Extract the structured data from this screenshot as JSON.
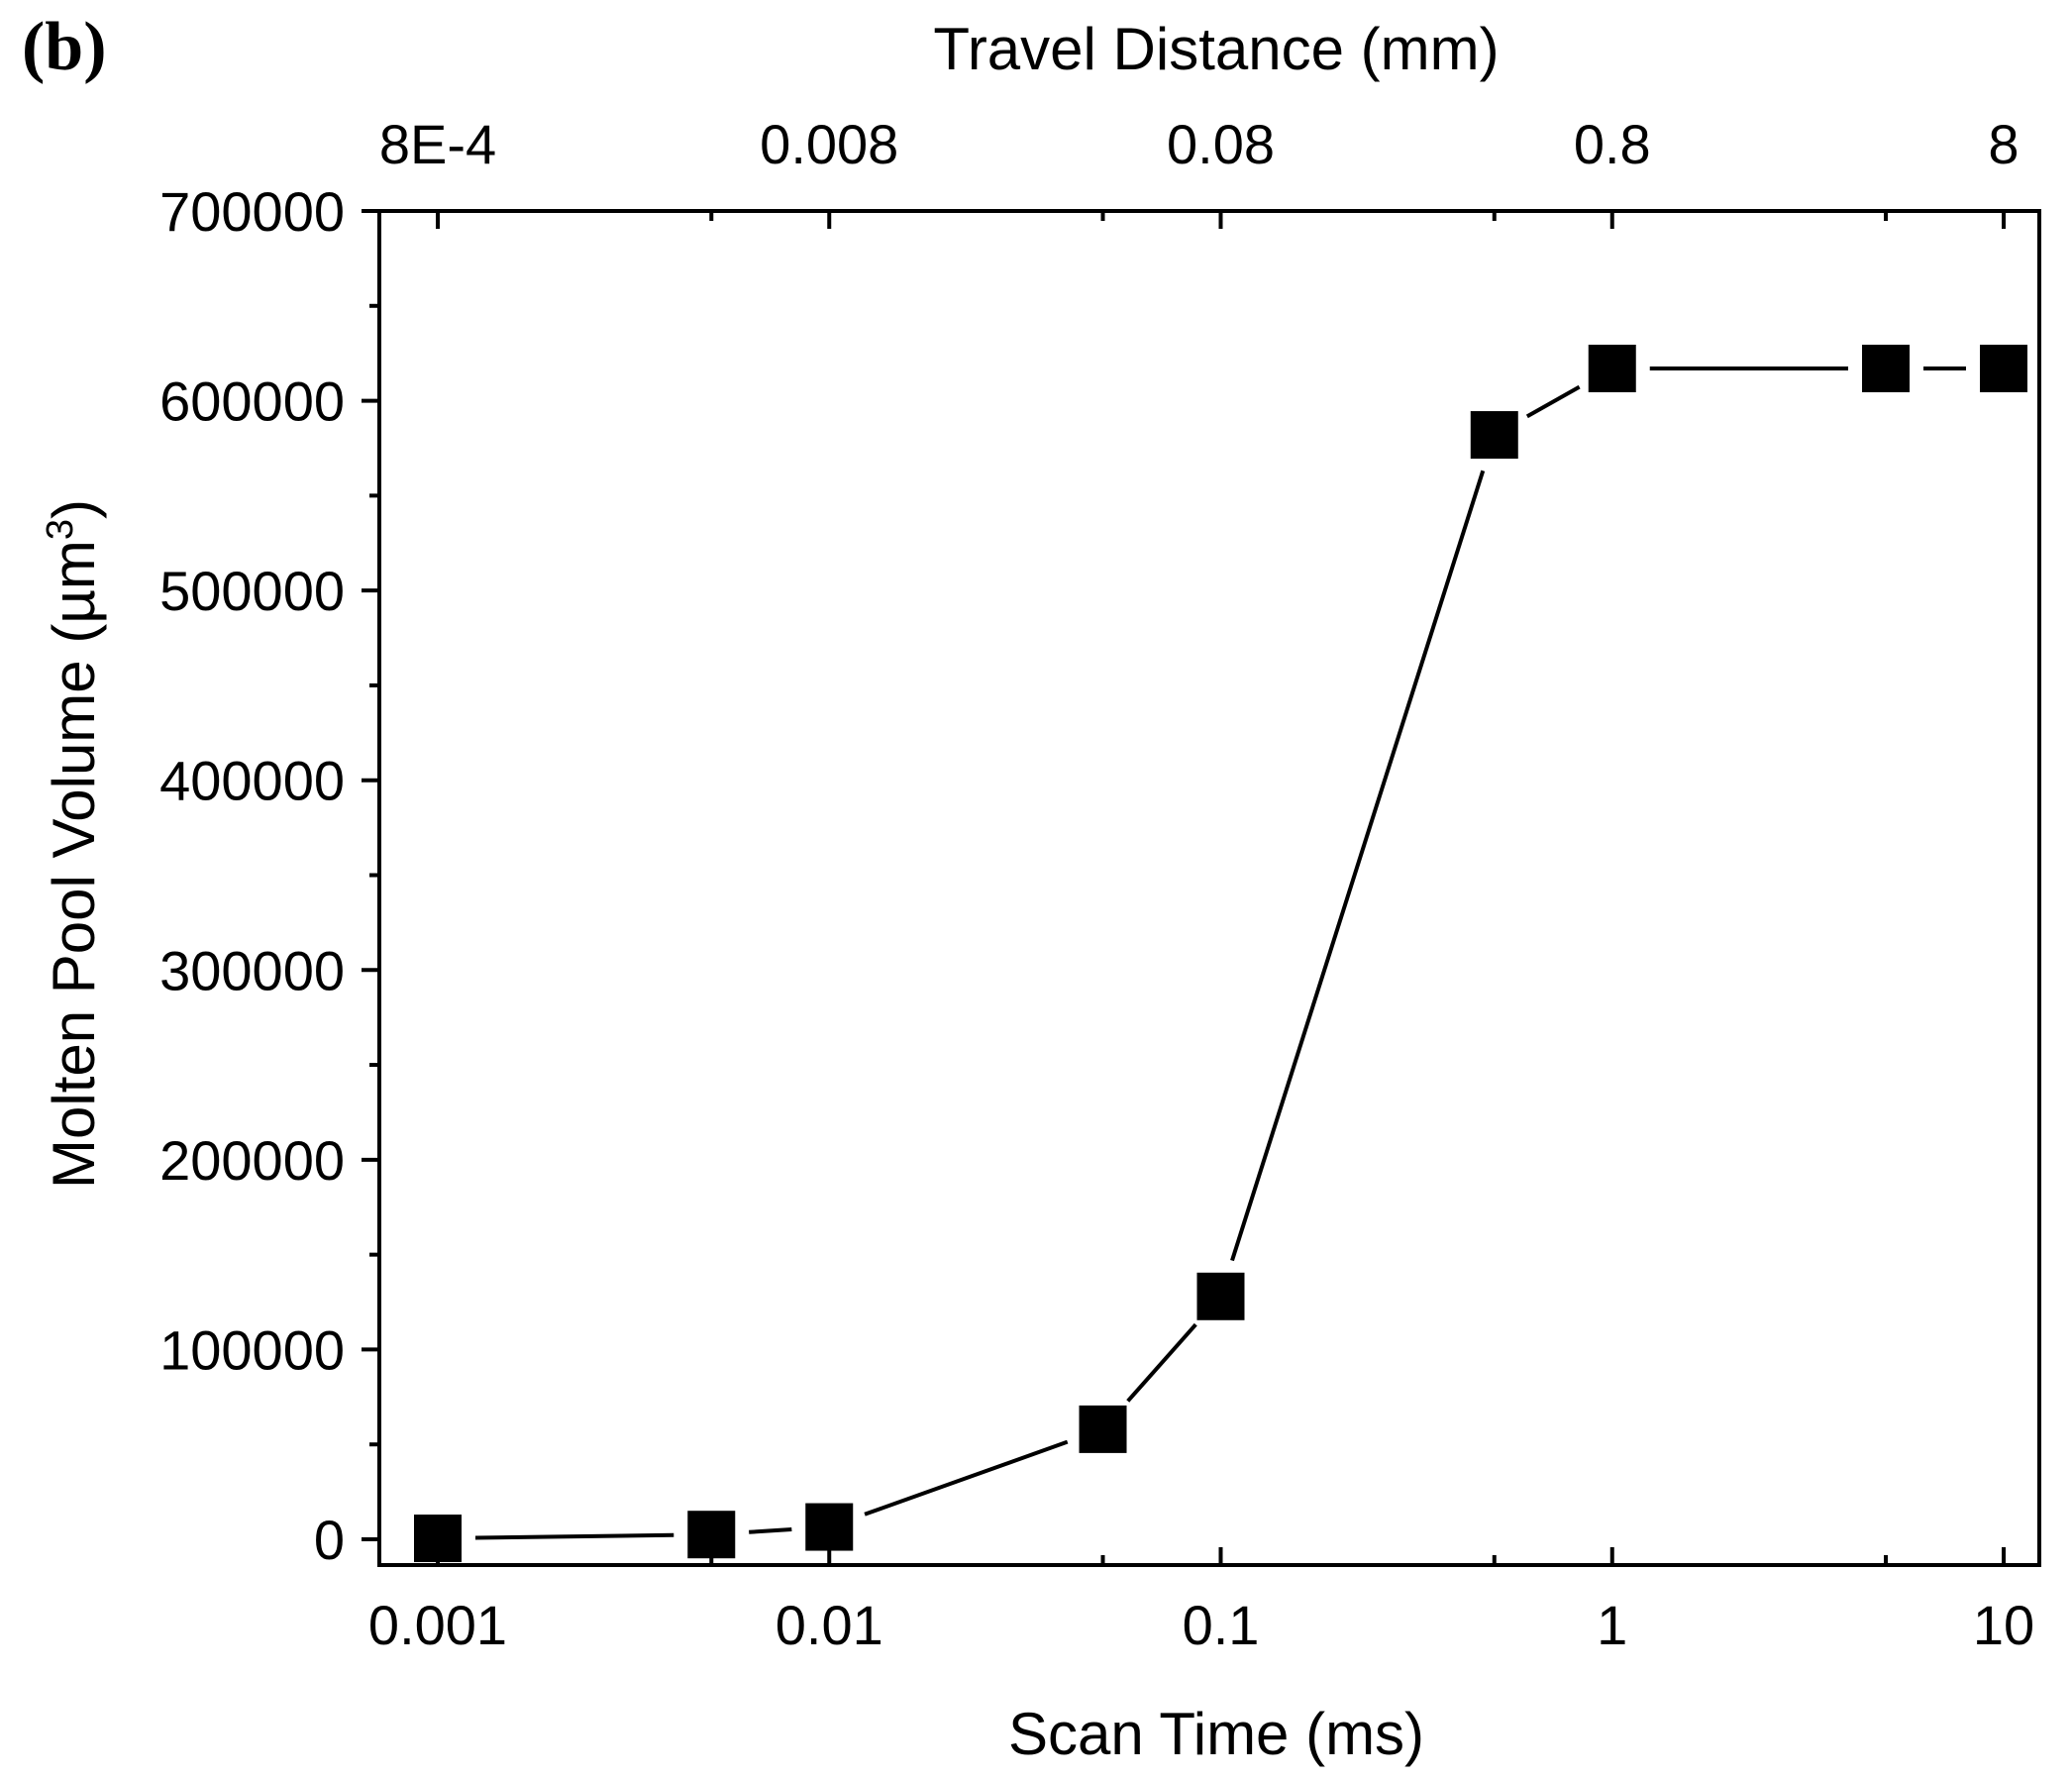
{
  "panel_label": "(b)",
  "chart_data": {
    "type": "line",
    "xlabel": "Scan Time (ms)",
    "x2label": "Travel Distance (mm)",
    "ylabel": "Molten Pool Volume (µm",
    "ylabel_sup": "3",
    "ylabel_close": ")",
    "x_scale": "log",
    "xlim": [
      0.001,
      10
    ],
    "ylim": [
      0,
      700000
    ],
    "grid": false,
    "x_ticks": [
      0.001,
      0.01,
      0.1,
      1,
      10
    ],
    "x_tick_labels": [
      "0.001",
      "0.01",
      "0.1",
      "1",
      "10"
    ],
    "x2_ticks": [
      0.001,
      0.01,
      0.1,
      1,
      10
    ],
    "x2_tick_labels": [
      "8E-4",
      "0.008",
      "0.08",
      "0.8",
      "8"
    ],
    "y_ticks": [
      0,
      100000,
      200000,
      300000,
      400000,
      500000,
      600000,
      700000
    ],
    "y_tick_labels": [
      "0",
      "100000",
      "200000",
      "300000",
      "400000",
      "500000",
      "600000",
      "700000"
    ],
    "series": [
      {
        "marker": "square",
        "color": "#000000",
        "x": [
          0.001,
          0.005,
          0.01,
          0.05,
          0.1,
          0.5,
          1,
          5,
          10
        ],
        "y": [
          500,
          2500,
          6500,
          58000,
          128000,
          582000,
          617000,
          617000,
          617000
        ]
      }
    ]
  }
}
